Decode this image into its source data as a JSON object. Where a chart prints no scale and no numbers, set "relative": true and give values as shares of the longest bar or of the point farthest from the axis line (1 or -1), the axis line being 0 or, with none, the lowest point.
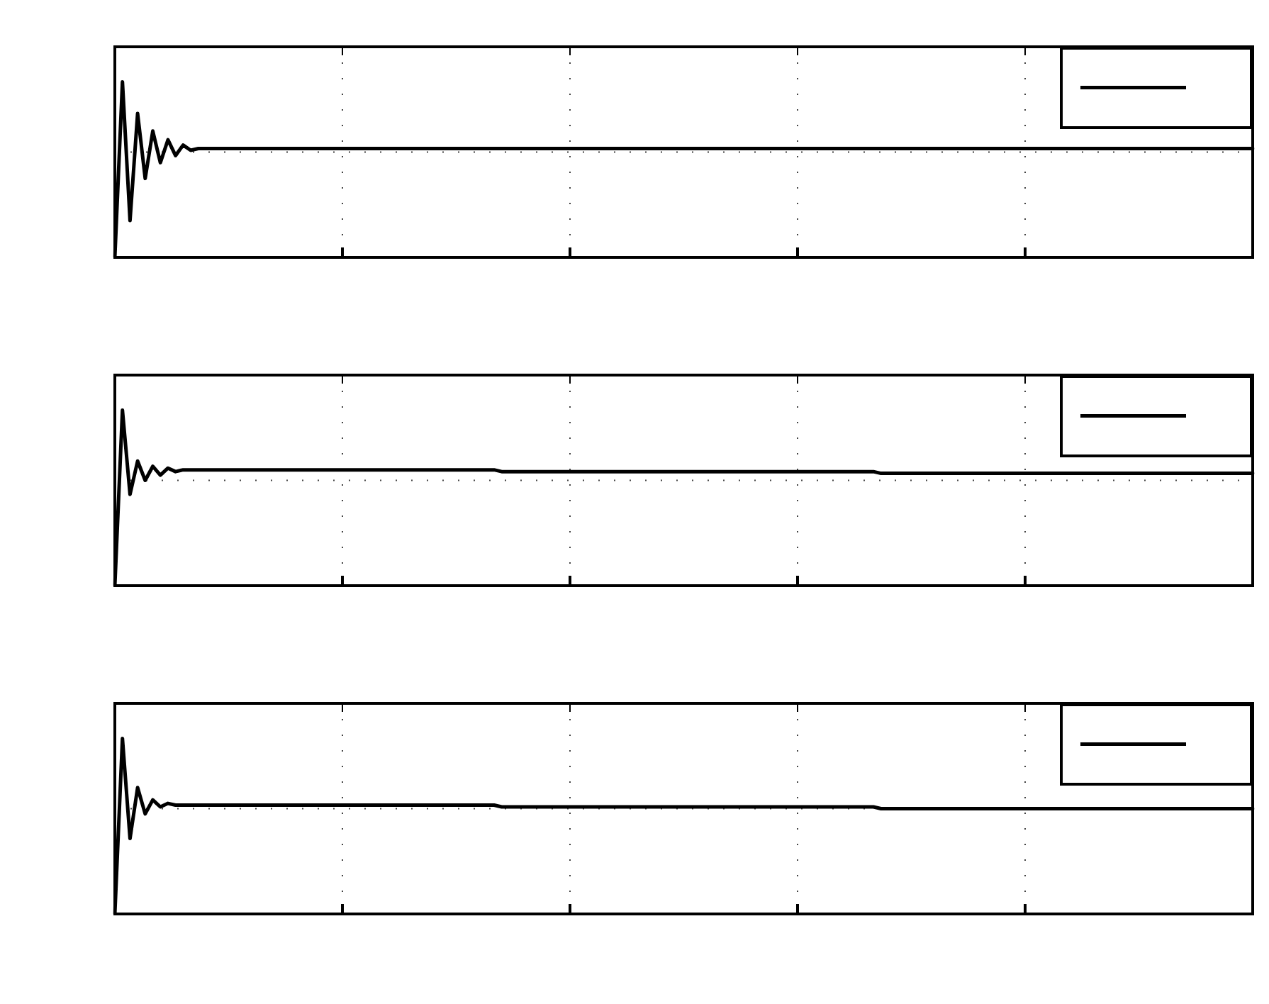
{
  "chart_data": [
    {
      "type": "line",
      "relative": true,
      "grid": true,
      "marker": "none",
      "tick_labels": false,
      "categories": [
        null,
        null,
        null,
        null,
        null,
        null,
        null,
        null,
        null,
        null,
        null,
        null,
        null,
        null,
        null,
        null,
        null,
        null,
        null,
        null,
        null,
        null,
        null,
        null,
        null,
        null,
        null,
        null,
        null,
        null,
        null,
        null,
        null,
        null,
        null,
        null,
        null,
        null,
        null,
        null,
        null,
        null,
        null,
        null,
        null,
        null,
        null,
        null,
        null,
        null,
        null,
        null,
        null,
        null,
        null,
        null,
        null,
        null,
        null,
        null,
        null,
        null,
        null,
        null,
        null,
        null,
        null,
        null,
        null,
        null,
        null,
        null,
        null,
        null,
        null,
        null,
        null,
        null,
        null,
        null,
        null,
        null,
        null,
        null,
        null,
        null,
        null,
        null,
        null,
        null,
        null,
        null,
        null,
        null,
        null,
        null,
        null,
        null,
        null,
        null,
        null,
        null,
        null,
        null,
        null,
        null,
        null,
        null,
        null,
        null,
        null,
        null,
        null,
        null,
        null,
        null,
        null,
        null,
        null,
        null,
        null,
        null,
        null,
        null,
        null,
        null,
        null,
        null,
        null,
        null,
        null,
        null,
        null,
        null,
        null,
        null,
        null,
        null,
        null,
        null,
        null,
        null,
        null,
        null,
        null,
        null,
        null,
        null,
        null,
        null,
        null
      ],
      "series": [
        {
          "color": "#000000",
          "values": [
            0,
            1,
            0.21,
            0.82,
            0.45,
            0.72,
            0.54,
            0.67,
            0.58,
            0.64,
            0.61,
            0.62,
            0.62,
            0.62,
            0.62,
            0.62,
            0.62,
            0.62,
            0.62,
            0.62,
            0.62,
            0.62,
            0.62,
            0.62,
            0.62,
            0.62,
            0.62,
            0.62,
            0.62,
            0.62,
            0.62,
            0.62,
            0.62,
            0.62,
            0.62,
            0.62,
            0.62,
            0.62,
            0.62,
            0.62,
            0.62,
            0.62,
            0.62,
            0.62,
            0.62,
            0.62,
            0.62,
            0.62,
            0.62,
            0.62,
            0.62,
            0.62,
            0.62,
            0.62,
            0.62,
            0.62,
            0.62,
            0.62,
            0.62,
            0.62,
            0.62,
            0.62,
            0.62,
            0.62,
            0.62,
            0.62,
            0.62,
            0.62,
            0.62,
            0.62,
            0.62,
            0.62,
            0.62,
            0.62,
            0.62,
            0.62,
            0.62,
            0.62,
            0.62,
            0.62,
            0.62,
            0.62,
            0.62,
            0.62,
            0.62,
            0.62,
            0.62,
            0.62,
            0.62,
            0.62,
            0.62,
            0.62,
            0.62,
            0.62,
            0.62,
            0.62,
            0.62,
            0.62,
            0.62,
            0.62,
            0.62,
            0.62,
            0.62,
            0.62,
            0.62,
            0.62,
            0.62,
            0.62,
            0.62,
            0.62,
            0.62,
            0.62,
            0.62,
            0.62,
            0.62,
            0.62,
            0.62,
            0.62,
            0.62,
            0.62,
            0.62,
            0.62,
            0.62,
            0.62,
            0.62,
            0.62,
            0.62,
            0.62,
            0.62,
            0.62,
            0.62,
            0.62,
            0.62,
            0.62,
            0.62,
            0.62,
            0.62,
            0.62,
            0.62,
            0.62,
            0.62,
            0.62,
            0.62,
            0.62,
            0.62,
            0.62,
            0.62,
            0.62,
            0.62,
            0.62,
            0.62
          ]
        }
      ]
    },
    {
      "type": "line",
      "relative": true,
      "grid": true,
      "marker": "none",
      "tick_labels": false,
      "categories": [
        null,
        null,
        null,
        null,
        null,
        null,
        null,
        null,
        null,
        null,
        null,
        null,
        null,
        null,
        null,
        null,
        null,
        null,
        null,
        null,
        null,
        null,
        null,
        null,
        null,
        null,
        null,
        null,
        null,
        null,
        null,
        null,
        null,
        null,
        null,
        null,
        null,
        null,
        null,
        null,
        null,
        null,
        null,
        null,
        null,
        null,
        null,
        null,
        null,
        null,
        null,
        null,
        null,
        null,
        null,
        null,
        null,
        null,
        null,
        null,
        null,
        null,
        null,
        null,
        null,
        null,
        null,
        null,
        null,
        null,
        null,
        null,
        null,
        null,
        null,
        null,
        null,
        null,
        null,
        null,
        null,
        null,
        null,
        null,
        null,
        null,
        null,
        null,
        null,
        null,
        null,
        null,
        null,
        null,
        null,
        null,
        null,
        null,
        null,
        null,
        null,
        null,
        null,
        null,
        null,
        null,
        null,
        null,
        null,
        null,
        null,
        null,
        null,
        null,
        null,
        null,
        null,
        null,
        null,
        null,
        null,
        null,
        null,
        null,
        null,
        null,
        null,
        null,
        null,
        null,
        null,
        null,
        null,
        null,
        null,
        null,
        null,
        null,
        null,
        null,
        null,
        null,
        null,
        null,
        null,
        null,
        null,
        null,
        null,
        null,
        null
      ],
      "series": [
        {
          "color": "#000000",
          "values": [
            0,
            1,
            0.52,
            0.71,
            0.6,
            0.68,
            0.63,
            0.67,
            0.65,
            0.66,
            0.66,
            0.66,
            0.66,
            0.66,
            0.66,
            0.66,
            0.66,
            0.66,
            0.66,
            0.66,
            0.66,
            0.66,
            0.66,
            0.66,
            0.66,
            0.66,
            0.66,
            0.66,
            0.66,
            0.66,
            0.66,
            0.66,
            0.66,
            0.66,
            0.66,
            0.66,
            0.66,
            0.66,
            0.66,
            0.66,
            0.66,
            0.66,
            0.66,
            0.66,
            0.66,
            0.66,
            0.66,
            0.66,
            0.66,
            0.66,
            0.66,
            0.65,
            0.65,
            0.65,
            0.65,
            0.65,
            0.65,
            0.65,
            0.65,
            0.65,
            0.65,
            0.65,
            0.65,
            0.65,
            0.65,
            0.65,
            0.65,
            0.65,
            0.65,
            0.65,
            0.65,
            0.65,
            0.65,
            0.65,
            0.65,
            0.65,
            0.65,
            0.65,
            0.65,
            0.65,
            0.65,
            0.65,
            0.65,
            0.65,
            0.65,
            0.65,
            0.65,
            0.65,
            0.65,
            0.65,
            0.65,
            0.65,
            0.65,
            0.65,
            0.65,
            0.65,
            0.65,
            0.65,
            0.65,
            0.65,
            0.65,
            0.64,
            0.64,
            0.64,
            0.64,
            0.64,
            0.64,
            0.64,
            0.64,
            0.64,
            0.64,
            0.64,
            0.64,
            0.64,
            0.64,
            0.64,
            0.64,
            0.64,
            0.64,
            0.64,
            0.64,
            0.64,
            0.64,
            0.64,
            0.64,
            0.64,
            0.64,
            0.64,
            0.64,
            0.64,
            0.64,
            0.64,
            0.64,
            0.64,
            0.64,
            0.64,
            0.64,
            0.64,
            0.64,
            0.64,
            0.64,
            0.64,
            0.64,
            0.64,
            0.64,
            0.64,
            0.64,
            0.64,
            0.64,
            0.64,
            0.64
          ]
        }
      ]
    },
    {
      "type": "line",
      "relative": true,
      "grid": true,
      "marker": "none",
      "tick_labels": false,
      "categories": [
        null,
        null,
        null,
        null,
        null,
        null,
        null,
        null,
        null,
        null,
        null,
        null,
        null,
        null,
        null,
        null,
        null,
        null,
        null,
        null,
        null,
        null,
        null,
        null,
        null,
        null,
        null,
        null,
        null,
        null,
        null,
        null,
        null,
        null,
        null,
        null,
        null,
        null,
        null,
        null,
        null,
        null,
        null,
        null,
        null,
        null,
        null,
        null,
        null,
        null,
        null,
        null,
        null,
        null,
        null,
        null,
        null,
        null,
        null,
        null,
        null,
        null,
        null,
        null,
        null,
        null,
        null,
        null,
        null,
        null,
        null,
        null,
        null,
        null,
        null,
        null,
        null,
        null,
        null,
        null,
        null,
        null,
        null,
        null,
        null,
        null,
        null,
        null,
        null,
        null,
        null,
        null,
        null,
        null,
        null,
        null,
        null,
        null,
        null,
        null,
        null,
        null,
        null,
        null,
        null,
        null,
        null,
        null,
        null,
        null,
        null,
        null,
        null,
        null,
        null,
        null,
        null,
        null,
        null,
        null,
        null,
        null,
        null,
        null,
        null,
        null,
        null,
        null,
        null,
        null,
        null,
        null,
        null,
        null,
        null,
        null,
        null,
        null,
        null,
        null,
        null,
        null,
        null,
        null,
        null,
        null,
        null,
        null,
        null,
        null,
        null
      ],
      "series": [
        {
          "color": "#000000",
          "values": [
            0,
            1,
            0.43,
            0.72,
            0.57,
            0.65,
            0.61,
            0.63,
            0.62,
            0.62,
            0.62,
            0.62,
            0.62,
            0.62,
            0.62,
            0.62,
            0.62,
            0.62,
            0.62,
            0.62,
            0.62,
            0.62,
            0.62,
            0.62,
            0.62,
            0.62,
            0.62,
            0.62,
            0.62,
            0.62,
            0.62,
            0.62,
            0.62,
            0.62,
            0.62,
            0.62,
            0.62,
            0.62,
            0.62,
            0.62,
            0.62,
            0.62,
            0.62,
            0.62,
            0.62,
            0.62,
            0.62,
            0.62,
            0.62,
            0.62,
            0.62,
            0.61,
            0.61,
            0.61,
            0.61,
            0.61,
            0.61,
            0.61,
            0.61,
            0.61,
            0.61,
            0.61,
            0.61,
            0.61,
            0.61,
            0.61,
            0.61,
            0.61,
            0.61,
            0.61,
            0.61,
            0.61,
            0.61,
            0.61,
            0.61,
            0.61,
            0.61,
            0.61,
            0.61,
            0.61,
            0.61,
            0.61,
            0.61,
            0.61,
            0.61,
            0.61,
            0.61,
            0.61,
            0.61,
            0.61,
            0.61,
            0.61,
            0.61,
            0.61,
            0.61,
            0.61,
            0.61,
            0.61,
            0.61,
            0.61,
            0.61,
            0.6,
            0.6,
            0.6,
            0.6,
            0.6,
            0.6,
            0.6,
            0.6,
            0.6,
            0.6,
            0.6,
            0.6,
            0.6,
            0.6,
            0.6,
            0.6,
            0.6,
            0.6,
            0.6,
            0.6,
            0.6,
            0.6,
            0.6,
            0.6,
            0.6,
            0.6,
            0.6,
            0.6,
            0.6,
            0.6,
            0.6,
            0.6,
            0.6,
            0.6,
            0.6,
            0.6,
            0.6,
            0.6,
            0.6,
            0.6,
            0.6,
            0.6,
            0.6,
            0.6,
            0.6,
            0.6,
            0.6,
            0.6,
            0.6,
            0.6
          ]
        }
      ]
    }
  ]
}
